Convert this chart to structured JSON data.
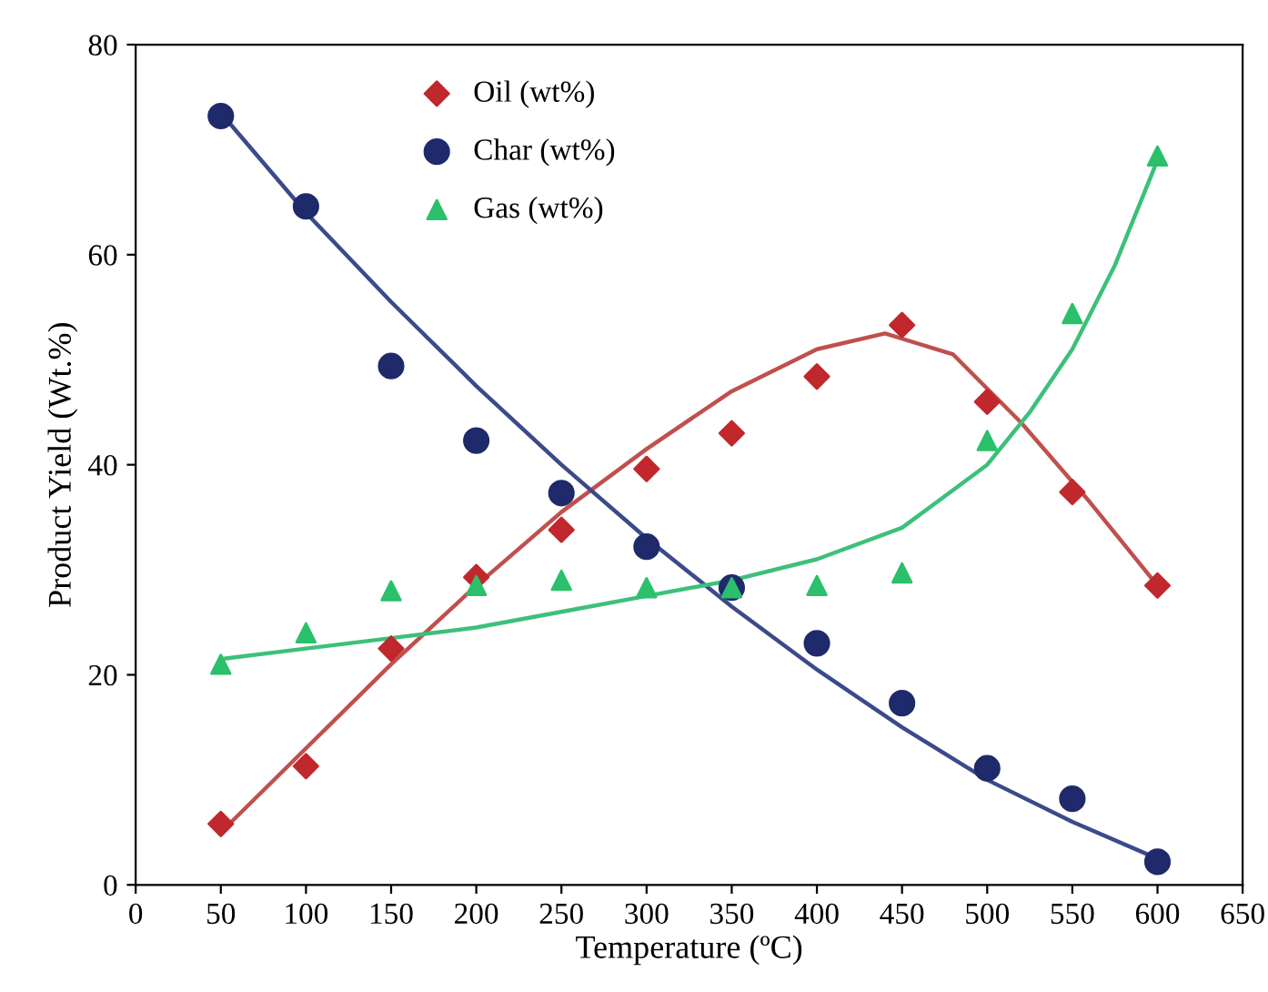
{
  "chart_data": {
    "type": "scatter",
    "xlabel": "Temperature (ºC)",
    "ylabel": "Product Yield (Wt.%)",
    "xlim": [
      0,
      650
    ],
    "xticks": [
      0,
      50,
      100,
      150,
      200,
      250,
      300,
      350,
      400,
      450,
      500,
      550,
      600,
      650
    ],
    "ylim": [
      0,
      80
    ],
    "yticks": [
      0,
      20,
      40,
      60,
      80
    ],
    "grid": false,
    "legend": "top",
    "x": [
      50,
      100,
      150,
      200,
      250,
      300,
      350,
      400,
      450,
      500,
      550,
      600
    ],
    "series": [
      {
        "name": "Oil (wt%)",
        "color": "#c0282d",
        "marker": "diamond",
        "values": [
          5.8,
          11.3,
          22.5,
          29.3,
          33.8,
          39.6,
          43,
          48.4,
          53.3,
          46,
          37.4,
          28.5
        ]
      },
      {
        "name": "Char (wt%)",
        "color": "#1f2a6b",
        "marker": "circle",
        "values": [
          73.2,
          64.6,
          49.4,
          42.3,
          37.3,
          32.2,
          28.3,
          23,
          17.3,
          11.1,
          8.2,
          2.2
        ]
      },
      {
        "name": "Gas (wt%)",
        "color": "#2bc06b",
        "marker": "triangle",
        "values": [
          21,
          24,
          28,
          28.5,
          29,
          28.3,
          28.3,
          28.5,
          29.7,
          42.3,
          54.4,
          69.4
        ]
      },
      {
        "type": "line",
        "color": "#c0504d",
        "x": [
          50,
          100,
          150,
          200,
          250,
          300,
          350,
          400,
          440,
          480,
          520,
          560,
          600
        ],
        "values": [
          5,
          13,
          21,
          28.5,
          35.5,
          41.5,
          47,
          51,
          52.5,
          50.5,
          44,
          36.5,
          28.5
        ]
      },
      {
        "type": "line",
        "color": "#3b4a8a",
        "x": [
          50,
          100,
          150,
          200,
          250,
          300,
          350,
          400,
          450,
          500,
          550,
          600
        ],
        "values": [
          73.5,
          64,
          55.5,
          47.5,
          40,
          33,
          26.5,
          20.5,
          15,
          10,
          6,
          2.5
        ]
      },
      {
        "type": "line",
        "color": "#3cc07a",
        "x": [
          50,
          100,
          150,
          200,
          250,
          300,
          350,
          400,
          450,
          500,
          525,
          550,
          575,
          600
        ],
        "values": [
          21.5,
          22.5,
          23.5,
          24.5,
          26,
          27.5,
          29,
          31,
          34,
          40,
          45,
          51,
          59,
          69
        ]
      }
    ]
  }
}
